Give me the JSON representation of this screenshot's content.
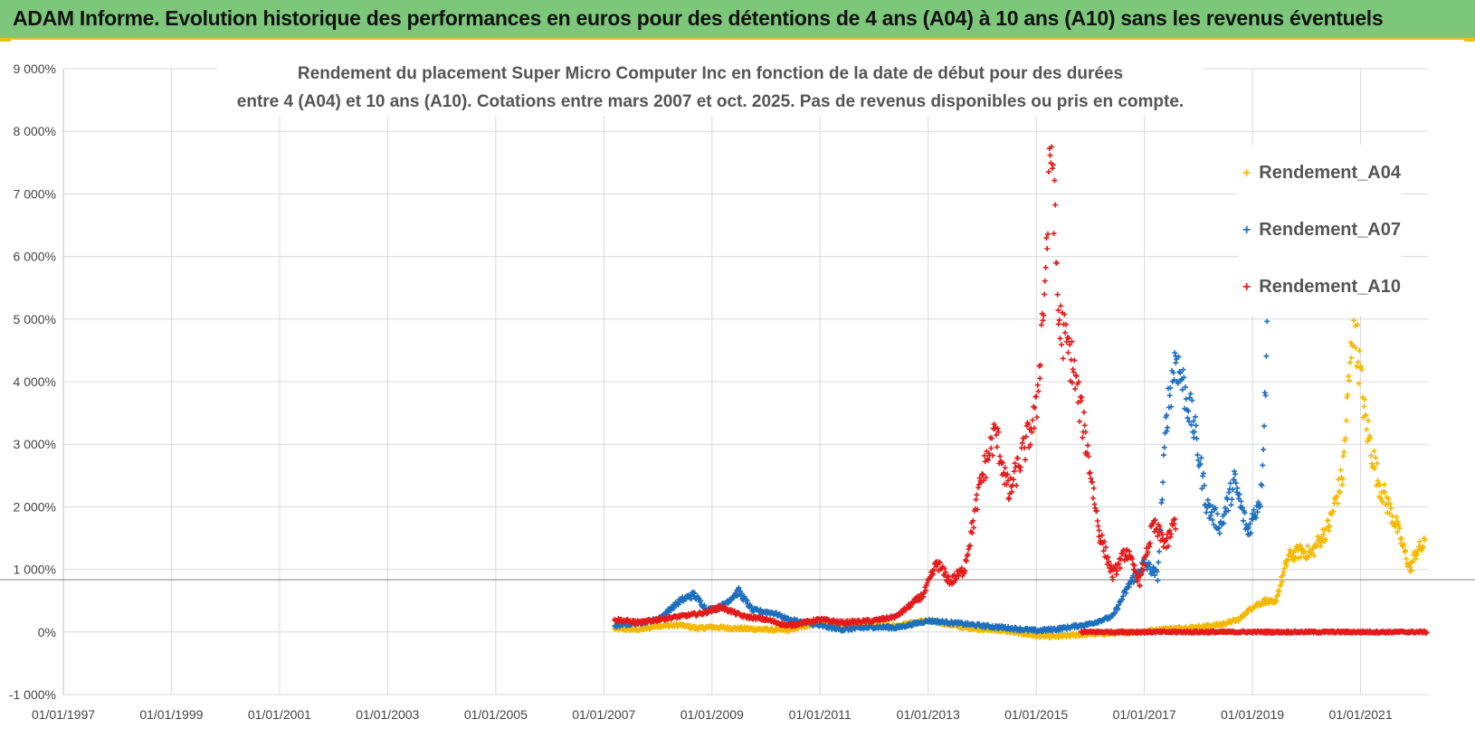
{
  "banner": {
    "title": "ADAM Informe. Evolution historique des performances en euros pour des détentions de 4 ans (A04) à 10 ans (A10) sans les revenus éventuels"
  },
  "colors": {
    "banner_bg": "#7dc77b",
    "A04": "#f5b800",
    "A07": "#1f6fbf",
    "A10": "#e31b1b",
    "grid": "#d9d9d9"
  },
  "chart_data": {
    "type": "scatter",
    "title_lines": [
      "Rendement du placement Super Micro Computer Inc en fonction de la date de début pour des durées",
      "entre 4 (A04) et 10 ans (A10). Cotations entre mars 2007 et oct. 2025. Pas de revenus disponibles ou pris en compte."
    ],
    "x_axis": {
      "type": "date",
      "min": "1997-01-01",
      "max": "2022-04-01",
      "tick_labels": [
        "01/01/1997",
        "01/01/1999",
        "01/01/2001",
        "01/01/2003",
        "01/01/2005",
        "01/01/2007",
        "01/01/2009",
        "01/01/2011",
        "01/01/2013",
        "01/01/2015",
        "01/01/2017",
        "01/01/2019",
        "01/01/2021"
      ]
    },
    "y_axis": {
      "min": -1000,
      "max": 9000,
      "tick_values": [
        -1000,
        0,
        1000,
        2000,
        3000,
        4000,
        5000,
        6000,
        7000,
        8000,
        9000
      ],
      "tick_labels": [
        "-1 000%",
        "0%",
        "1 000%",
        "2 000%",
        "3 000%",
        "4 000%",
        "5 000%",
        "6 000%",
        "7 000%",
        "8 000%",
        "9 000%"
      ]
    },
    "grid": true,
    "marker": "+",
    "legend_position": "top-right",
    "series": [
      {
        "name": "Rendement_A04",
        "points": [
          [
            "2007-03-15",
            50
          ],
          [
            "2007-09-01",
            40
          ],
          [
            "2008-01-01",
            100
          ],
          [
            "2008-06-01",
            110
          ],
          [
            "2008-10-01",
            60
          ],
          [
            "2009-01-01",
            80
          ],
          [
            "2009-06-01",
            60
          ],
          [
            "2010-01-01",
            40
          ],
          [
            "2010-06-01",
            30
          ],
          [
            "2011-01-01",
            150
          ],
          [
            "2011-06-01",
            130
          ],
          [
            "2012-01-01",
            120
          ],
          [
            "2012-06-01",
            100
          ],
          [
            "2012-12-01",
            180
          ],
          [
            "2013-03-01",
            160
          ],
          [
            "2013-09-01",
            70
          ],
          [
            "2014-06-01",
            20
          ],
          [
            "2015-01-01",
            -60
          ],
          [
            "2015-06-01",
            -70
          ],
          [
            "2016-01-01",
            -30
          ],
          [
            "2016-06-01",
            -20
          ],
          [
            "2017-01-01",
            10
          ],
          [
            "2017-06-01",
            50
          ],
          [
            "2018-01-01",
            80
          ],
          [
            "2018-06-01",
            120
          ],
          [
            "2018-10-01",
            200
          ],
          [
            "2019-01-01",
            400
          ],
          [
            "2019-04-01",
            500
          ],
          [
            "2019-06-01",
            450
          ],
          [
            "2019-09-01",
            1200
          ],
          [
            "2019-12-01",
            1300
          ],
          [
            "2020-02-01",
            1250
          ],
          [
            "2020-06-01",
            1700
          ],
          [
            "2020-09-01",
            2500
          ],
          [
            "2020-11-15",
            5100
          ],
          [
            "2021-02-01",
            3400
          ],
          [
            "2021-05-01",
            2400
          ],
          [
            "2021-09-01",
            1700
          ],
          [
            "2021-12-01",
            1000
          ],
          [
            "2022-01-15",
            1300
          ],
          [
            "2022-03-15",
            1400
          ]
        ]
      },
      {
        "name": "Rendement_A07",
        "points": [
          [
            "2007-03-15",
            100
          ],
          [
            "2007-09-01",
            150
          ],
          [
            "2008-01-01",
            200
          ],
          [
            "2008-06-01",
            500
          ],
          [
            "2008-09-01",
            600
          ],
          [
            "2008-12-01",
            350
          ],
          [
            "2009-03-01",
            400
          ],
          [
            "2009-07-01",
            650
          ],
          [
            "2009-10-01",
            350
          ],
          [
            "2010-03-01",
            300
          ],
          [
            "2010-06-01",
            200
          ],
          [
            "2011-01-01",
            100
          ],
          [
            "2011-06-01",
            40
          ],
          [
            "2012-01-01",
            80
          ],
          [
            "2012-06-01",
            70
          ],
          [
            "2013-01-01",
            180
          ],
          [
            "2013-06-01",
            150
          ],
          [
            "2014-01-01",
            100
          ],
          [
            "2014-06-01",
            70
          ],
          [
            "2015-01-01",
            20
          ],
          [
            "2015-06-01",
            50
          ],
          [
            "2016-01-01",
            130
          ],
          [
            "2016-06-01",
            250
          ],
          [
            "2016-10-01",
            800
          ],
          [
            "2017-01-01",
            1100
          ],
          [
            "2017-04-01",
            900
          ],
          [
            "2017-06-01",
            3500
          ],
          [
            "2017-08-01",
            4400
          ],
          [
            "2017-12-01",
            3300
          ],
          [
            "2018-03-01",
            2000
          ],
          [
            "2018-06-01",
            1700
          ],
          [
            "2018-09-01",
            2400
          ],
          [
            "2018-12-01",
            1600
          ],
          [
            "2019-03-01",
            2200
          ],
          [
            "2019-04-15",
            5000
          ]
        ]
      },
      {
        "name": "Rendement_A10",
        "points": [
          [
            "2007-03-15",
            200
          ],
          [
            "2007-09-01",
            150
          ],
          [
            "2008-01-01",
            200
          ],
          [
            "2008-06-01",
            250
          ],
          [
            "2008-11-01",
            300
          ],
          [
            "2009-03-01",
            400
          ],
          [
            "2009-08-01",
            250
          ],
          [
            "2010-01-01",
            200
          ],
          [
            "2010-06-01",
            100
          ],
          [
            "2011-01-01",
            200
          ],
          [
            "2011-06-01",
            150
          ],
          [
            "2012-01-01",
            180
          ],
          [
            "2012-06-01",
            250
          ],
          [
            "2012-12-01",
            600
          ],
          [
            "2013-03-01",
            1100
          ],
          [
            "2013-06-01",
            800
          ],
          [
            "2013-09-01",
            1000
          ],
          [
            "2014-01-01",
            2500
          ],
          [
            "2014-04-01",
            3200
          ],
          [
            "2014-07-01",
            2200
          ],
          [
            "2015-01-01",
            3500
          ],
          [
            "2015-03-01",
            5600
          ],
          [
            "2015-04-15",
            7900
          ],
          [
            "2015-06-01",
            5000
          ],
          [
            "2015-09-01",
            4300
          ],
          [
            "2015-12-01",
            3100
          ],
          [
            "2016-03-01",
            1600
          ],
          [
            "2016-06-01",
            900
          ],
          [
            "2016-09-01",
            1300
          ],
          [
            "2016-12-01",
            800
          ],
          [
            "2017-03-01",
            1700
          ],
          [
            "2017-06-01",
            1400
          ],
          [
            "2017-08-01",
            1800
          ]
        ]
      }
    ]
  }
}
